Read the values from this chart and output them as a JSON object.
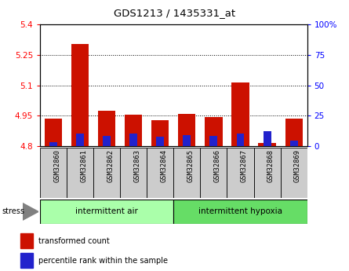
{
  "title": "GDS1213 / 1435331_at",
  "samples": [
    "GSM32860",
    "GSM32861",
    "GSM32862",
    "GSM32863",
    "GSM32864",
    "GSM32865",
    "GSM32866",
    "GSM32867",
    "GSM32868",
    "GSM32869"
  ],
  "red_values": [
    4.935,
    5.305,
    4.975,
    4.955,
    4.93,
    4.96,
    4.945,
    5.115,
    4.815,
    4.935
  ],
  "blue_values": [
    3.5,
    10.5,
    8.5,
    10.5,
    8.0,
    9.0,
    8.5,
    10.5,
    12.5,
    4.5
  ],
  "y_min": 4.8,
  "y_max": 5.4,
  "y_ticks": [
    4.8,
    4.95,
    5.1,
    5.25,
    5.4
  ],
  "y_tick_labels": [
    "4.8",
    "4.95",
    "5.1",
    "5.25",
    "5.4"
  ],
  "right_y_ticks": [
    0,
    25,
    50,
    75,
    100
  ],
  "right_y_labels": [
    "0",
    "25",
    "50",
    "75",
    "100%"
  ],
  "groups": [
    {
      "label": "intermittent air",
      "indices": [
        0,
        1,
        2,
        3,
        4
      ],
      "color": "#aaffaa"
    },
    {
      "label": "intermittent hypoxia",
      "indices": [
        5,
        6,
        7,
        8,
        9
      ],
      "color": "#66dd66"
    }
  ],
  "stress_label": "stress",
  "bar_width": 0.65,
  "red_color": "#cc1100",
  "blue_color": "#2222cc",
  "plot_bg": "#ffffff",
  "sample_box_color": "#cccccc",
  "legend": [
    {
      "color": "#cc1100",
      "label": "transformed count"
    },
    {
      "color": "#2222cc",
      "label": "percentile rank within the sample"
    }
  ]
}
